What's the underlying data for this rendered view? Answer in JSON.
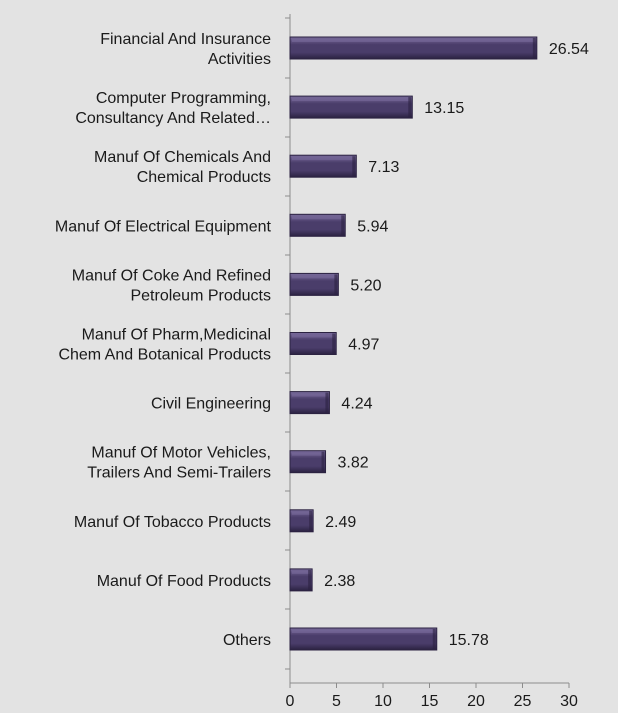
{
  "chart_data": {
    "type": "bar",
    "orientation": "horizontal",
    "categories": [
      [
        "Financial And Insurance",
        "Activities"
      ],
      [
        "Computer Programming,",
        "Consultancy And Related…"
      ],
      [
        "Manuf Of Chemicals And",
        "Chemical Products"
      ],
      [
        "Manuf Of Electrical Equipment"
      ],
      [
        "Manuf Of Coke And Refined",
        "Petroleum Products"
      ],
      [
        "Manuf Of Pharm,Medicinal",
        "Chem And Botanical Products"
      ],
      [
        "Civil Engineering"
      ],
      [
        "Manuf Of Motor Vehicles,",
        "Trailers And Semi-Trailers"
      ],
      [
        "Manuf Of Tobacco Products"
      ],
      [
        "Manuf Of Food Products"
      ],
      [
        "Others"
      ]
    ],
    "values": [
      26.54,
      13.15,
      7.13,
      5.94,
      5.2,
      4.97,
      4.24,
      3.82,
      2.49,
      2.38,
      15.78
    ],
    "value_labels": [
      "26.54",
      "13.15",
      "7.13",
      "5.94",
      "5.20",
      "4.97",
      "4.24",
      "3.82",
      "2.49",
      "2.38",
      "15.78"
    ],
    "xlim": [
      0,
      30
    ],
    "x_ticks": [
      "0",
      "5",
      "10",
      "15",
      "20",
      "25",
      "30"
    ],
    "grid": false,
    "colors": {
      "background": "#e3e3e3",
      "bar_fill": "#4a3d6a",
      "bar_light": "#7a6c9c",
      "bar_dark": "#2b2241",
      "axis": "#8c8c8c"
    }
  }
}
